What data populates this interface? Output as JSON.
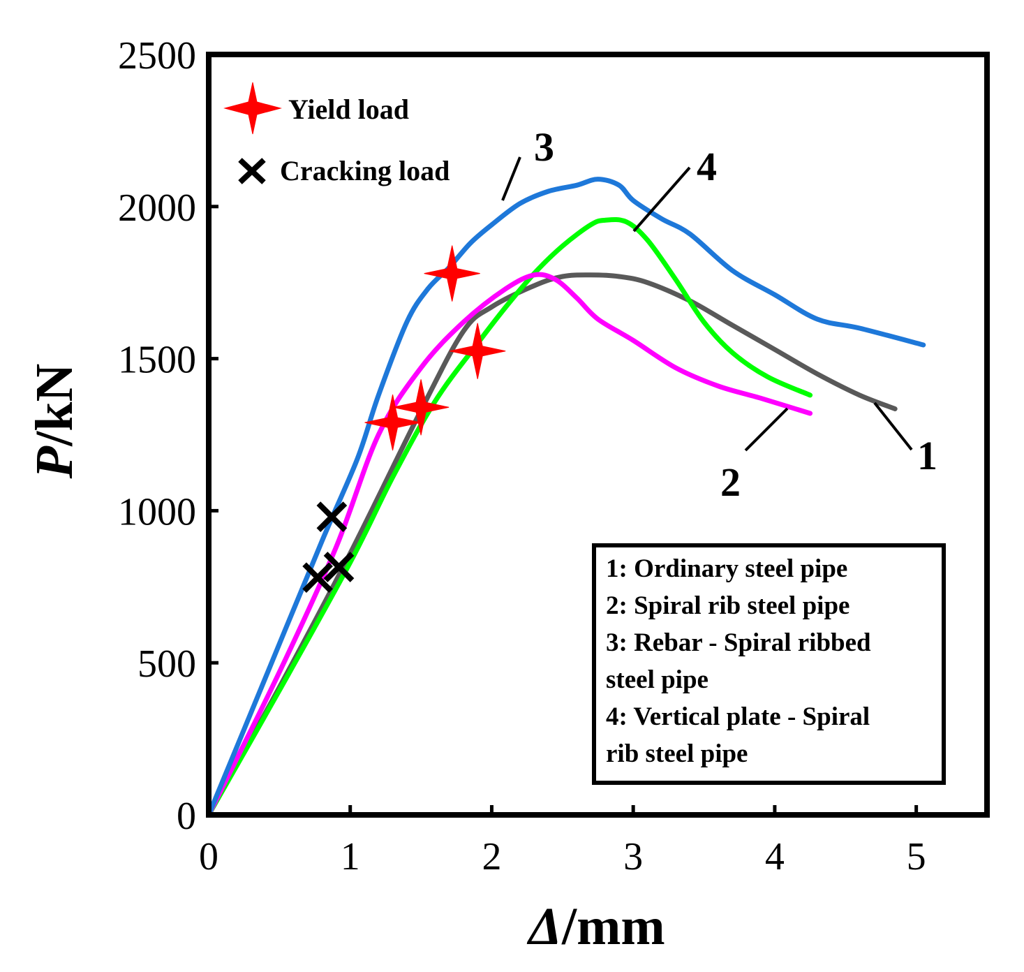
{
  "chart_data": {
    "type": "line",
    "xlabel": "Δ/mm",
    "ylabel": "P/kN",
    "xlabel_symbol": "Δ",
    "xlabel_unit": "/mm",
    "ylabel_symbol": "P",
    "ylabel_unit": "/kN",
    "xlim": [
      0,
      5.5
    ],
    "ylim": [
      0,
      2500
    ],
    "xticks": [
      0,
      1,
      2,
      3,
      4,
      5
    ],
    "yticks": [
      0,
      500,
      1000,
      1500,
      2000,
      2500
    ],
    "xtick_labels": [
      "0",
      "1",
      "2",
      "3",
      "4",
      "5"
    ],
    "ytick_labels": [
      "0",
      "500",
      "1000",
      "1500",
      "2000",
      "2500"
    ],
    "marker_legend": {
      "yield_label": "Yield load",
      "cracking_label": "Cracking load"
    },
    "series": [
      {
        "id": "1",
        "name": "Ordinary steel pipe",
        "color": "#595959",
        "x": [
          0,
          0.5,
          1.0,
          1.5,
          1.8,
          2.0,
          2.3,
          2.5,
          2.7,
          2.9,
          3.1,
          3.4,
          3.7,
          4.0,
          4.3,
          4.6,
          4.85
        ],
        "y": [
          0,
          420,
          860,
          1330,
          1590,
          1670,
          1740,
          1770,
          1775,
          1770,
          1750,
          1690,
          1610,
          1530,
          1450,
          1380,
          1335
        ]
      },
      {
        "id": "2",
        "name": "Spiral rib steel pipe",
        "color": "#FF00FF",
        "x": [
          0,
          0.5,
          0.9,
          1.2,
          1.5,
          1.8,
          2.1,
          2.3,
          2.45,
          2.6,
          2.75,
          3.0,
          3.3,
          3.6,
          3.9,
          4.25
        ],
        "y": [
          0,
          470,
          880,
          1250,
          1470,
          1620,
          1730,
          1775,
          1760,
          1700,
          1630,
          1560,
          1470,
          1410,
          1370,
          1320
        ]
      },
      {
        "id": "3",
        "name": "Rebar - Spiral ribbed steel pipe",
        "color": "#1E78D9",
        "x": [
          0,
          0.4,
          0.8,
          1.05,
          1.2,
          1.4,
          1.55,
          1.7,
          1.85,
          2.0,
          2.2,
          2.4,
          2.6,
          2.75,
          2.9,
          3.0,
          3.2,
          3.4,
          3.7,
          4.0,
          4.3,
          4.6,
          5.05
        ],
        "y": [
          0,
          450,
          900,
          1170,
          1380,
          1620,
          1730,
          1800,
          1880,
          1940,
          2010,
          2050,
          2070,
          2090,
          2070,
          2020,
          1960,
          1910,
          1790,
          1710,
          1630,
          1600,
          1545
        ]
      },
      {
        "id": "4",
        "name": "Vertical plate - Spiral rib steel pipe",
        "color": "#00FF00",
        "x": [
          0,
          0.5,
          1.0,
          1.3,
          1.6,
          1.9,
          2.1,
          2.3,
          2.5,
          2.7,
          2.8,
          2.95,
          3.1,
          3.3,
          3.5,
          3.7,
          3.95,
          4.25
        ],
        "y": [
          0,
          410,
          830,
          1110,
          1360,
          1550,
          1670,
          1780,
          1870,
          1940,
          1955,
          1950,
          1890,
          1760,
          1620,
          1520,
          1440,
          1380
        ]
      }
    ],
    "yield_points": [
      {
        "series": "3",
        "x": 1.72,
        "y": 1780
      },
      {
        "series": "1",
        "x": 1.9,
        "y": 1525
      },
      {
        "series": "2",
        "x": 1.5,
        "y": 1340
      },
      {
        "series": "4",
        "x": 1.3,
        "y": 1290
      }
    ],
    "cracking_points": [
      {
        "series": "3",
        "x": 0.87,
        "y": 980
      },
      {
        "series": "2",
        "x": 0.77,
        "y": 780
      },
      {
        "series": "4",
        "x": 0.92,
        "y": 815
      }
    ],
    "description_box": {
      "lines": [
        "1: Ordinary steel pipe",
        "2: Spiral rib steel pipe",
        "3: Rebar - Spiral ribbed",
        "steel pipe",
        "4: Vertical plate - Spiral",
        "rib steel pipe"
      ]
    }
  }
}
